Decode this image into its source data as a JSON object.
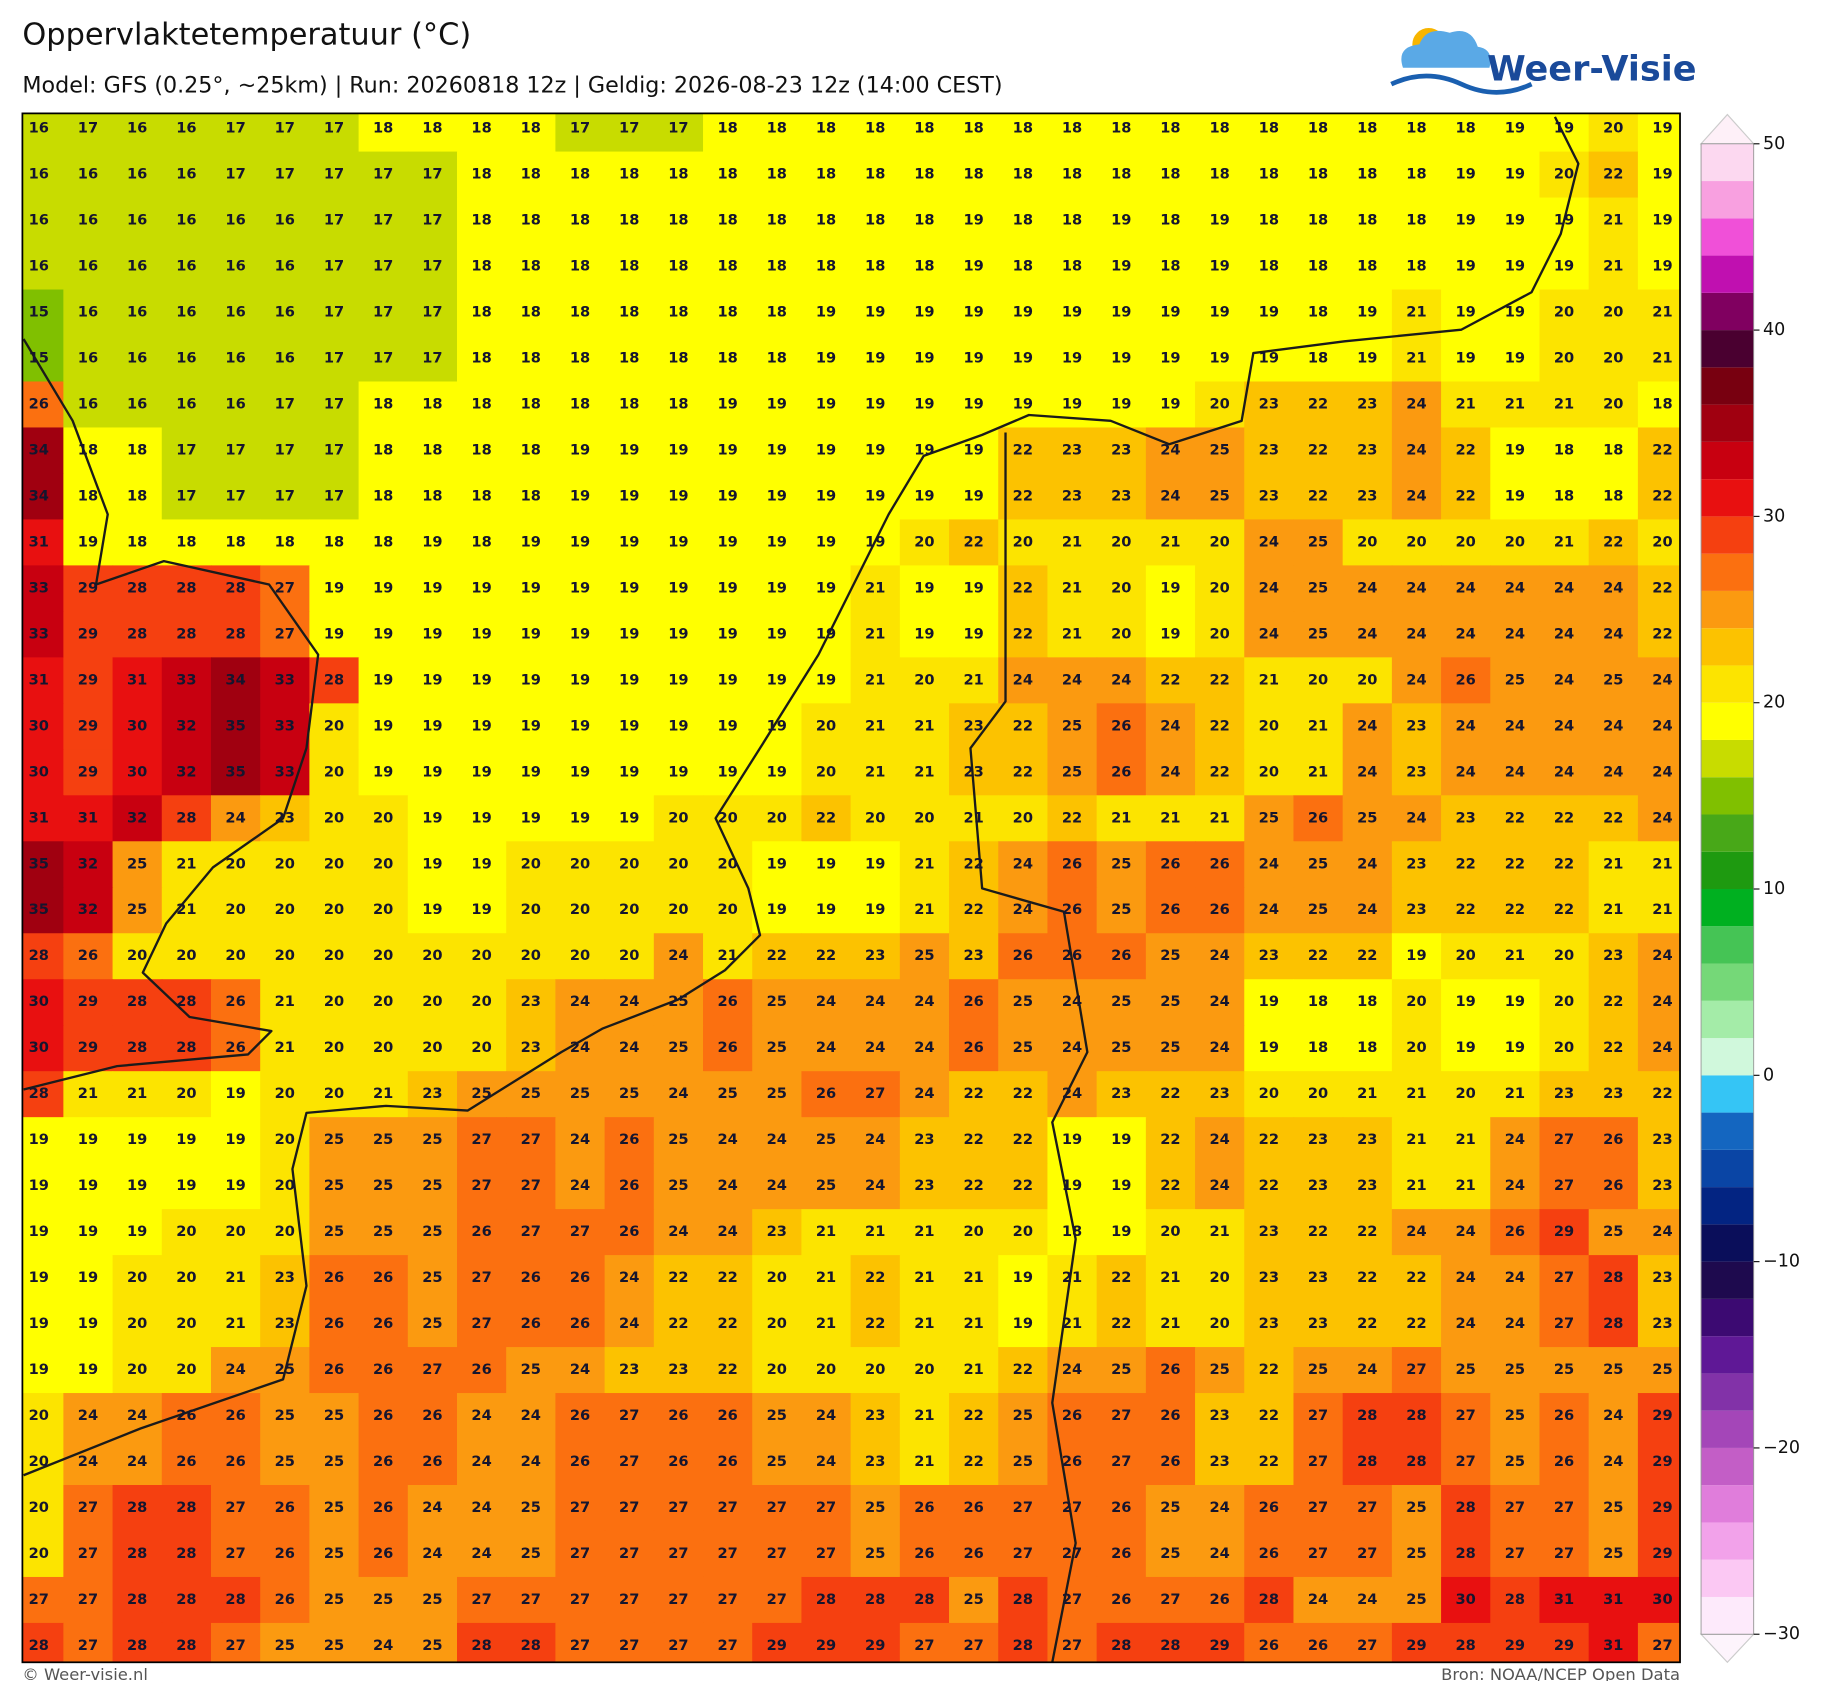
{
  "header": {
    "title": "Oppervlaktetemperatuur (°C)",
    "subtitle": "Model: GFS (0.25°, ~25km)  |  Run: 20260818 12z  |  Geldig: 2026-08-23 12z (14:00 CEST)"
  },
  "logo": "Weer-Visie",
  "grid": {
    "values": [
      [
        16,
        17,
        16,
        16,
        17,
        17,
        17,
        18,
        18,
        18,
        18,
        17,
        17,
        17,
        18,
        18,
        18,
        18,
        18,
        18,
        18,
        18,
        18,
        18,
        18,
        18,
        18,
        18,
        18,
        18,
        19,
        19,
        20,
        19
      ],
      [
        16,
        16,
        16,
        16,
        17,
        17,
        17,
        17,
        17,
        18,
        18,
        18,
        18,
        18,
        18,
        18,
        18,
        18,
        18,
        18,
        18,
        18,
        18,
        18,
        18,
        18,
        18,
        18,
        18,
        19,
        19,
        20,
        22,
        19
      ],
      [
        16,
        16,
        16,
        16,
        16,
        16,
        17,
        17,
        17,
        18,
        18,
        18,
        18,
        18,
        18,
        18,
        18,
        18,
        18,
        19,
        18,
        18,
        19,
        18,
        19,
        18,
        18,
        18,
        18,
        19,
        19,
        19,
        21,
        19
      ],
      [
        16,
        16,
        16,
        16,
        16,
        16,
        17,
        17,
        17,
        18,
        18,
        18,
        18,
        18,
        18,
        18,
        18,
        18,
        18,
        19,
        18,
        18,
        19,
        18,
        19,
        18,
        18,
        18,
        18,
        19,
        19,
        19,
        21,
        19
      ],
      [
        15,
        16,
        16,
        16,
        16,
        16,
        17,
        17,
        17,
        18,
        18,
        18,
        18,
        18,
        18,
        18,
        19,
        19,
        19,
        19,
        19,
        19,
        19,
        19,
        19,
        19,
        18,
        19,
        21,
        19,
        19,
        20,
        20,
        21
      ],
      [
        15,
        16,
        16,
        16,
        16,
        16,
        17,
        17,
        17,
        18,
        18,
        18,
        18,
        18,
        18,
        18,
        19,
        19,
        19,
        19,
        19,
        19,
        19,
        19,
        19,
        19,
        18,
        19,
        21,
        19,
        19,
        20,
        20,
        21
      ],
      [
        26,
        16,
        16,
        16,
        16,
        17,
        17,
        18,
        18,
        18,
        18,
        18,
        18,
        18,
        19,
        19,
        19,
        19,
        19,
        19,
        19,
        19,
        19,
        19,
        20,
        23,
        22,
        23,
        24,
        21,
        21,
        21,
        20,
        18
      ],
      [
        34,
        18,
        18,
        17,
        17,
        17,
        17,
        18,
        18,
        18,
        18,
        19,
        19,
        19,
        19,
        19,
        19,
        19,
        19,
        19,
        22,
        23,
        23,
        24,
        25,
        23,
        22,
        23,
        24,
        22,
        19,
        18,
        18,
        22
      ],
      [
        34,
        18,
        18,
        17,
        17,
        17,
        17,
        18,
        18,
        18,
        18,
        19,
        19,
        19,
        19,
        19,
        19,
        19,
        19,
        19,
        22,
        23,
        23,
        24,
        25,
        23,
        22,
        23,
        24,
        22,
        19,
        18,
        18,
        22
      ],
      [
        31,
        19,
        18,
        18,
        18,
        18,
        18,
        18,
        19,
        18,
        19,
        19,
        19,
        19,
        19,
        19,
        19,
        19,
        20,
        22,
        20,
        21,
        20,
        21,
        20,
        24,
        25,
        20,
        20,
        20,
        20,
        21,
        22,
        20
      ],
      [
        33,
        29,
        28,
        28,
        28,
        27,
        19,
        19,
        19,
        19,
        19,
        19,
        19,
        19,
        19,
        19,
        19,
        21,
        19,
        19,
        22,
        21,
        20,
        19,
        20,
        24,
        25,
        24,
        24,
        24,
        24,
        24,
        24,
        22
      ],
      [
        33,
        29,
        28,
        28,
        28,
        27,
        19,
        19,
        19,
        19,
        19,
        19,
        19,
        19,
        19,
        19,
        19,
        21,
        19,
        19,
        22,
        21,
        20,
        19,
        20,
        24,
        25,
        24,
        24,
        24,
        24,
        24,
        24,
        22
      ],
      [
        31,
        29,
        31,
        33,
        34,
        33,
        28,
        19,
        19,
        19,
        19,
        19,
        19,
        19,
        19,
        19,
        19,
        21,
        20,
        21,
        24,
        24,
        24,
        22,
        22,
        21,
        20,
        20,
        24,
        26,
        25,
        24,
        25,
        24
      ],
      [
        30,
        29,
        30,
        32,
        35,
        33,
        20,
        19,
        19,
        19,
        19,
        19,
        19,
        19,
        19,
        19,
        20,
        21,
        21,
        23,
        22,
        25,
        26,
        24,
        22,
        20,
        21,
        24,
        23,
        24,
        24,
        24,
        24,
        24
      ],
      [
        30,
        29,
        30,
        32,
        35,
        33,
        20,
        19,
        19,
        19,
        19,
        19,
        19,
        19,
        19,
        19,
        20,
        21,
        21,
        23,
        22,
        25,
        26,
        24,
        22,
        20,
        21,
        24,
        23,
        24,
        24,
        24,
        24,
        24
      ],
      [
        31,
        31,
        32,
        28,
        24,
        23,
        20,
        20,
        19,
        19,
        19,
        19,
        19,
        20,
        20,
        20,
        22,
        20,
        20,
        21,
        20,
        22,
        21,
        21,
        21,
        25,
        26,
        25,
        24,
        23,
        22,
        22,
        22,
        24
      ],
      [
        35,
        32,
        25,
        21,
        20,
        20,
        20,
        20,
        19,
        19,
        20,
        20,
        20,
        20,
        20,
        19,
        19,
        19,
        21,
        22,
        24,
        26,
        25,
        26,
        26,
        24,
        25,
        24,
        23,
        22,
        22,
        22,
        21,
        21
      ],
      [
        35,
        32,
        25,
        21,
        20,
        20,
        20,
        20,
        19,
        19,
        20,
        20,
        20,
        20,
        20,
        19,
        19,
        19,
        21,
        22,
        24,
        26,
        25,
        26,
        26,
        24,
        25,
        24,
        23,
        22,
        22,
        22,
        21,
        21
      ],
      [
        28,
        26,
        20,
        20,
        20,
        20,
        20,
        20,
        20,
        20,
        20,
        20,
        20,
        24,
        21,
        22,
        22,
        23,
        25,
        23,
        26,
        26,
        26,
        25,
        24,
        23,
        22,
        22,
        19,
        20,
        21,
        20,
        23,
        24
      ],
      [
        30,
        29,
        28,
        28,
        26,
        21,
        20,
        20,
        20,
        20,
        23,
        24,
        24,
        25,
        26,
        25,
        24,
        24,
        24,
        26,
        25,
        24,
        25,
        25,
        24,
        19,
        18,
        18,
        20,
        19,
        19,
        20,
        22,
        24
      ],
      [
        30,
        29,
        28,
        28,
        26,
        21,
        20,
        20,
        20,
        20,
        23,
        24,
        24,
        25,
        26,
        25,
        24,
        24,
        24,
        26,
        25,
        24,
        25,
        25,
        24,
        19,
        18,
        18,
        20,
        19,
        19,
        20,
        22,
        24
      ],
      [
        28,
        21,
        21,
        20,
        19,
        20,
        20,
        21,
        23,
        25,
        25,
        25,
        25,
        24,
        25,
        25,
        26,
        27,
        24,
        22,
        22,
        24,
        23,
        22,
        23,
        20,
        20,
        21,
        21,
        20,
        21,
        23,
        23,
        22
      ],
      [
        19,
        19,
        19,
        19,
        19,
        20,
        25,
        25,
        25,
        27,
        27,
        24,
        26,
        25,
        24,
        24,
        25,
        24,
        23,
        22,
        22,
        19,
        19,
        22,
        24,
        22,
        23,
        23,
        21,
        21,
        24,
        27,
        26,
        23
      ],
      [
        19,
        19,
        19,
        19,
        19,
        20,
        25,
        25,
        25,
        27,
        27,
        24,
        26,
        25,
        24,
        24,
        25,
        24,
        23,
        22,
        22,
        19,
        19,
        22,
        24,
        22,
        23,
        23,
        21,
        21,
        24,
        27,
        26,
        23
      ],
      [
        19,
        19,
        19,
        20,
        20,
        20,
        25,
        25,
        25,
        26,
        27,
        27,
        26,
        24,
        24,
        23,
        21,
        21,
        21,
        20,
        20,
        18,
        19,
        20,
        21,
        23,
        22,
        22,
        24,
        24,
        26,
        29,
        25,
        24
      ],
      [
        19,
        19,
        20,
        20,
        21,
        23,
        26,
        26,
        25,
        27,
        26,
        26,
        24,
        22,
        22,
        20,
        21,
        22,
        21,
        21,
        19,
        21,
        22,
        21,
        20,
        23,
        23,
        22,
        22,
        24,
        24,
        27,
        28,
        23
      ],
      [
        19,
        19,
        20,
        20,
        21,
        23,
        26,
        26,
        25,
        27,
        26,
        26,
        24,
        22,
        22,
        20,
        21,
        22,
        21,
        21,
        19,
        21,
        22,
        21,
        20,
        23,
        23,
        22,
        22,
        24,
        24,
        27,
        28,
        23
      ],
      [
        19,
        19,
        20,
        20,
        24,
        25,
        26,
        26,
        27,
        26,
        25,
        24,
        23,
        23,
        22,
        20,
        20,
        20,
        20,
        21,
        22,
        24,
        25,
        26,
        25,
        22,
        25,
        24,
        27,
        25,
        25,
        25,
        25,
        25
      ],
      [
        20,
        24,
        24,
        26,
        26,
        25,
        25,
        26,
        26,
        24,
        24,
        26,
        27,
        26,
        26,
        25,
        24,
        23,
        21,
        22,
        25,
        26,
        27,
        26,
        23,
        22,
        27,
        28,
        28,
        27,
        25,
        26,
        24,
        29
      ],
      [
        20,
        24,
        24,
        26,
        26,
        25,
        25,
        26,
        26,
        24,
        24,
        26,
        27,
        26,
        26,
        25,
        24,
        23,
        21,
        22,
        25,
        26,
        27,
        26,
        23,
        22,
        27,
        28,
        28,
        27,
        25,
        26,
        24,
        29
      ],
      [
        20,
        27,
        28,
        28,
        27,
        26,
        25,
        26,
        24,
        24,
        25,
        27,
        27,
        27,
        27,
        27,
        27,
        25,
        26,
        26,
        27,
        27,
        26,
        25,
        24,
        26,
        27,
        27,
        25,
        28,
        27,
        27,
        25,
        29
      ],
      [
        20,
        27,
        28,
        28,
        27,
        26,
        25,
        26,
        24,
        24,
        25,
        27,
        27,
        27,
        27,
        27,
        27,
        25,
        26,
        26,
        27,
        27,
        26,
        25,
        24,
        26,
        27,
        27,
        25,
        28,
        27,
        27,
        25,
        29
      ],
      [
        27,
        27,
        28,
        28,
        28,
        26,
        25,
        25,
        25,
        27,
        27,
        27,
        27,
        27,
        27,
        27,
        28,
        28,
        28,
        25,
        28,
        27,
        26,
        27,
        26,
        28,
        24,
        24,
        25,
        30,
        28,
        31,
        31,
        30
      ],
      [
        28,
        27,
        28,
        28,
        27,
        25,
        25,
        24,
        25,
        28,
        28,
        27,
        27,
        27,
        27,
        29,
        29,
        29,
        27,
        27,
        28,
        27,
        28,
        28,
        29,
        26,
        26,
        27,
        29,
        28,
        29,
        29,
        31,
        27
      ]
    ]
  },
  "colorbar": {
    "levels": [
      -30,
      -28,
      -26,
      -24,
      -22,
      -20,
      -18,
      -16,
      -14,
      -12,
      -10,
      -8,
      -6,
      -4,
      -2,
      0,
      2,
      4,
      6,
      8,
      10,
      12,
      14,
      16,
      18,
      20,
      22,
      24,
      26,
      28,
      30,
      32,
      34,
      36,
      38,
      40,
      42,
      44,
      46,
      48,
      50
    ],
    "colors": [
      "#fdeafb",
      "#fbc8f3",
      "#f2a2ea",
      "#e07ddb",
      "#c35ec6",
      "#a446b8",
      "#8232a8",
      "#5f1896",
      "#3c0a72",
      "#1e0a4e",
      "#0a0e5a",
      "#032482",
      "#0a45a5",
      "#1466c0",
      "#35c5f5",
      "#d0f8dc",
      "#a4eca8",
      "#75d878",
      "#45c455",
      "#00b020",
      "#1e9a10",
      "#48a818",
      "#80c000",
      "#c8dc00",
      "#ffff00",
      "#fce400",
      "#fcc200",
      "#fb9a10",
      "#fb7010",
      "#f54010",
      "#e81010",
      "#c80010",
      "#a00010",
      "#780010",
      "#4a0030",
      "#800060",
      "#c010b0",
      "#f050d8",
      "#f8a0e0",
      "#fcd8f0"
    ],
    "ticks": [
      {
        "value": -30,
        "label": "−30"
      },
      {
        "value": -20,
        "label": "−20"
      },
      {
        "value": -10,
        "label": "−10"
      },
      0,
      10,
      20,
      30,
      40,
      50
    ]
  },
  "footer": {
    "left": "© Weer-visie.nl",
    "right": "Bron: NOAA/NCEP Open Data"
  }
}
